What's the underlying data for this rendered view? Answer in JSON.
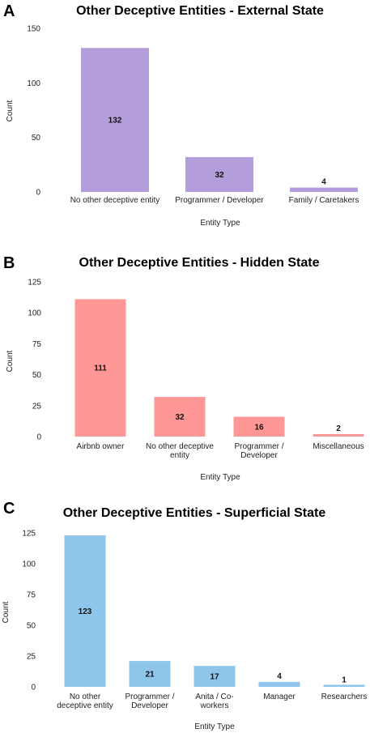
{
  "chart_data": [
    {
      "type": "bar",
      "panel": "A",
      "title": "Other Deceptive Entities - External State",
      "xlabel": "Entity Type",
      "ylabel": "Count",
      "yticks": [
        0,
        50,
        100,
        150
      ],
      "ylim": [
        0,
        150
      ],
      "categories": [
        [
          "No other deceptive entity"
        ],
        [
          "Programmer / Developer"
        ],
        [
          "Family / Caretakers"
        ]
      ],
      "values": [
        132,
        32,
        4
      ],
      "color": "#b39ddb",
      "grid": false
    },
    {
      "type": "bar",
      "panel": "B",
      "title": "Other Deceptive Entities - Hidden State",
      "xlabel": "Entity Type",
      "ylabel": "Count",
      "yticks": [
        0,
        25,
        50,
        75,
        100,
        125
      ],
      "ylim": [
        0,
        125
      ],
      "categories": [
        [
          "Airbnb owner"
        ],
        [
          "No other deceptive",
          "entity"
        ],
        [
          "Programmer /",
          "Developer"
        ],
        [
          "Miscellaneous"
        ]
      ],
      "values": [
        111,
        32,
        16,
        2
      ],
      "color": "#ff9797",
      "grid": false
    },
    {
      "type": "bar",
      "panel": "C",
      "title": "Other Deceptive Entities - Superficial State",
      "xlabel": "Entity Type",
      "ylabel": "Count",
      "yticks": [
        0,
        25,
        50,
        75,
        100,
        125
      ],
      "ylim": [
        0,
        125
      ],
      "categories": [
        [
          "No other",
          "deceptive entity"
        ],
        [
          "Programmer /",
          "Developer"
        ],
        [
          "Anita / Co-",
          "workers"
        ],
        [
          "Manager"
        ],
        [
          "Researchers"
        ]
      ],
      "values": [
        123,
        21,
        17,
        4,
        1
      ],
      "color": "#8ec5ea",
      "grid": false
    }
  ]
}
